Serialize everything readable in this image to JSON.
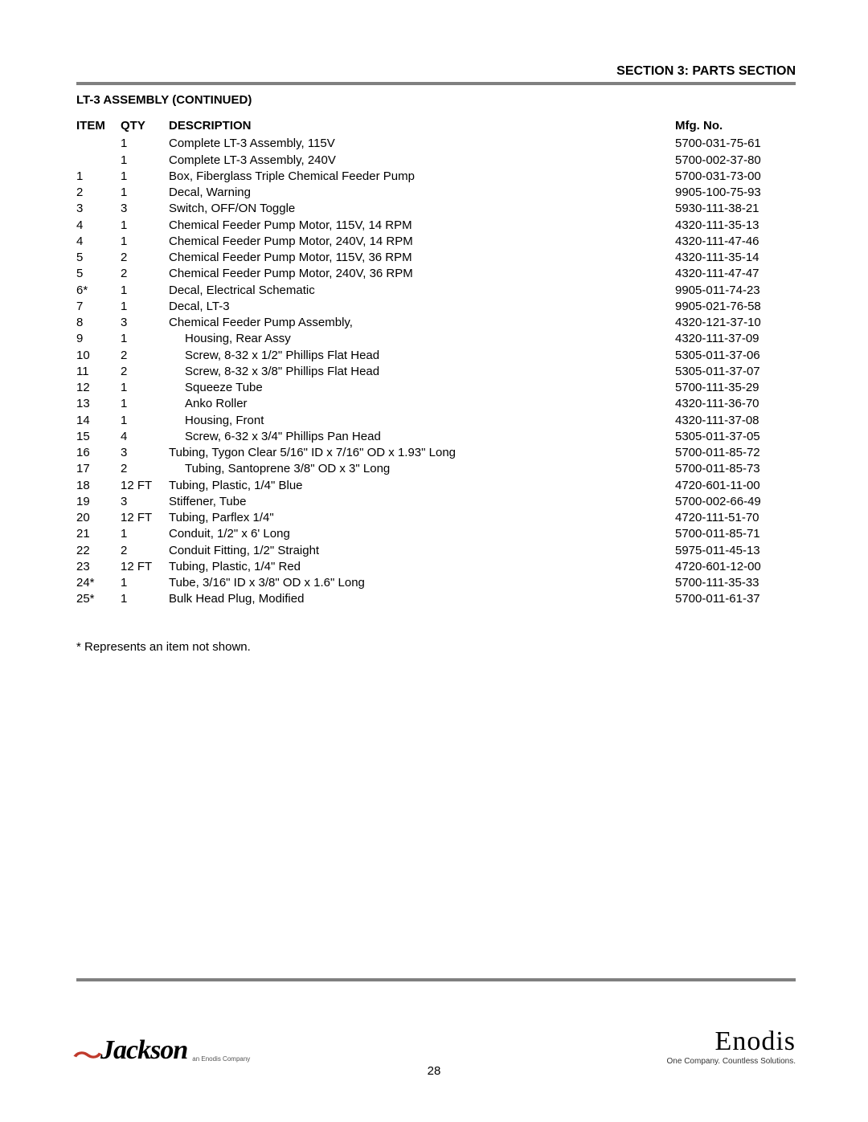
{
  "header": {
    "section_title": "SECTION 3: PARTS SECTION",
    "subtitle": "LT-3 ASSEMBLY (CONTINUED)"
  },
  "table": {
    "columns": {
      "item": "ITEM",
      "qty": "QTY",
      "desc": "DESCRIPTION",
      "mfg": "Mfg. No."
    },
    "rows": [
      {
        "item": "",
        "qty": "1",
        "desc": "Complete LT-3 Assembly, 115V",
        "mfg": "5700-031-75-61",
        "indent": 0
      },
      {
        "item": "",
        "qty": "1",
        "desc": "Complete LT-3 Assembly, 240V",
        "mfg": "5700-002-37-80",
        "indent": 0
      },
      {
        "item": "1",
        "qty": "1",
        "desc": "Box, Fiberglass Triple Chemical Feeder Pump",
        "mfg": "5700-031-73-00",
        "indent": 0
      },
      {
        "item": "2",
        "qty": "1",
        "desc": "Decal, Warning",
        "mfg": "9905-100-75-93",
        "indent": 0
      },
      {
        "item": "3",
        "qty": "3",
        "desc": "Switch, OFF/ON Toggle",
        "mfg": "5930-111-38-21",
        "indent": 0
      },
      {
        "item": "4",
        "qty": "1",
        "desc": "Chemical Feeder Pump Motor, 115V, 14 RPM",
        "mfg": "4320-111-35-13",
        "indent": 0
      },
      {
        "item": "4",
        "qty": "1",
        "desc": "Chemical Feeder Pump Motor, 240V, 14 RPM",
        "mfg": "4320-111-47-46",
        "indent": 0
      },
      {
        "item": "5",
        "qty": "2",
        "desc": "Chemical Feeder Pump Motor, 115V, 36 RPM",
        "mfg": "4320-111-35-14",
        "indent": 0
      },
      {
        "item": "5",
        "qty": "2",
        "desc": "Chemical Feeder Pump Motor, 240V, 36 RPM",
        "mfg": "4320-111-47-47",
        "indent": 0
      },
      {
        "item": "6*",
        "qty": "1",
        "desc": "Decal, Electrical Schematic",
        "mfg": "9905-011-74-23",
        "indent": 0
      },
      {
        "item": "7",
        "qty": "1",
        "desc": "Decal, LT-3",
        "mfg": "9905-021-76-58",
        "indent": 0
      },
      {
        "item": "8",
        "qty": "3",
        "desc": "Chemical Feeder Pump Assembly,",
        "mfg": "4320-121-37-10",
        "indent": 0
      },
      {
        "item": "9",
        "qty": "1",
        "desc": "Housing, Rear Assy",
        "mfg": "4320-111-37-09",
        "indent": 1
      },
      {
        "item": "10",
        "qty": "2",
        "desc": "Screw, 8-32 x 1/2\" Phillips Flat Head",
        "mfg": "5305-011-37-06",
        "indent": 1
      },
      {
        "item": "11",
        "qty": "2",
        "desc": "Screw, 8-32 x 3/8\" Phillips Flat Head",
        "mfg": "5305-011-37-07",
        "indent": 1
      },
      {
        "item": "12",
        "qty": "1",
        "desc": "Squeeze Tube",
        "mfg": "5700-111-35-29",
        "indent": 1
      },
      {
        "item": "13",
        "qty": "1",
        "desc": "Anko Roller",
        "mfg": "4320-111-36-70",
        "indent": 1
      },
      {
        "item": "14",
        "qty": "1",
        "desc": "Housing, Front",
        "mfg": "4320-111-37-08",
        "indent": 1
      },
      {
        "item": "15",
        "qty": "4",
        "desc": "Screw, 6-32 x 3/4\" Phillips Pan Head",
        "mfg": "5305-011-37-05",
        "indent": 1
      },
      {
        "item": "16",
        "qty": "3",
        "desc": "Tubing, Tygon Clear 5/16\" ID x 7/16\" OD x 1.93\"  Long",
        "mfg": "5700-011-85-72",
        "indent": 0
      },
      {
        "item": "17",
        "qty": "2",
        "desc": "Tubing, Santoprene 3/8\" OD x 3\" Long",
        "mfg": "5700-011-85-73",
        "indent": 1
      },
      {
        "item": "18",
        "qty": "12 FT",
        "desc": "Tubing, Plastic, 1/4\" Blue",
        "mfg": "4720-601-11-00",
        "indent": 0
      },
      {
        "item": "19",
        "qty": "3",
        "desc": "Stiffener, Tube",
        "mfg": "5700-002-66-49",
        "indent": 0
      },
      {
        "item": "20",
        "qty": "12 FT",
        "desc": "Tubing, Parflex 1/4\"",
        "mfg": "4720-111-51-70",
        "indent": 0
      },
      {
        "item": "21",
        "qty": "1",
        "desc": "Conduit, 1/2\" x 6' Long",
        "mfg": "5700-011-85-71",
        "indent": 0
      },
      {
        "item": "22",
        "qty": "2",
        "desc": "Conduit Fitting, 1/2\" Straight",
        "mfg": "5975-011-45-13",
        "indent": 0
      },
      {
        "item": "23",
        "qty": "12 FT",
        "desc": "Tubing, Plastic, 1/4\" Red",
        "mfg": "4720-601-12-00",
        "indent": 0
      },
      {
        "item": "24*",
        "qty": "1",
        "desc": "Tube, 3/16\" ID x 3/8\" OD x 1.6\" Long",
        "mfg": "5700-111-35-33",
        "indent": 0
      },
      {
        "item": "25*",
        "qty": "1",
        "desc": "Bulk Head Plug, Modified",
        "mfg": "5700-011-61-37",
        "indent": 0
      }
    ]
  },
  "footnote": "* Represents an item not shown.",
  "footer": {
    "left_logo_name": "Jackson",
    "left_logo_tag": "an Enodis Company",
    "right_logo_name": "Enodis",
    "right_logo_tag": "One Company. Countless Solutions.",
    "page_number": "28"
  },
  "style": {
    "rule_color": "#808080",
    "swoosh_color": "#c0392b",
    "text_color": "#000000",
    "background_color": "#ffffff"
  }
}
